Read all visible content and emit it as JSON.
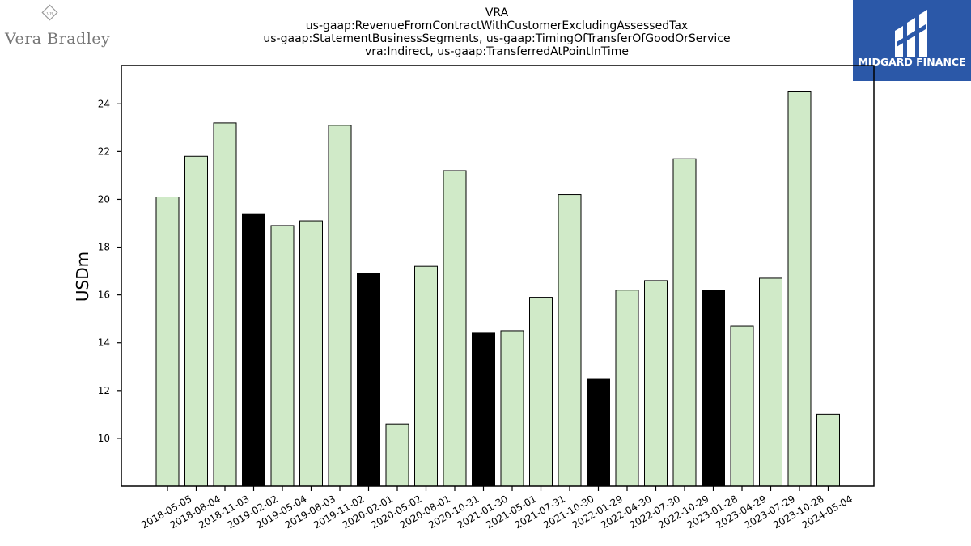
{
  "brand": {
    "left_logo_text": "Vera Bradley",
    "left_logo_monogram": "VB",
    "right_logo_text": "MIDGARD FINANCE",
    "right_logo_bg": "#2b58a8"
  },
  "chart_data": {
    "type": "bar",
    "title": [
      "VRA",
      "us-gaap:RevenueFromContractWithCustomerExcludingAssessedTax",
      "us-gaap:StatementBusinessSegments, us-gaap:TimingOfTransferOfGoodOrService",
      "vra:Indirect, us-gaap:TransferredAtPointInTime"
    ],
    "xlabel": "",
    "ylabel": "USDm",
    "ylim": [
      8.0,
      25.6
    ],
    "yticks": [
      10,
      12,
      14,
      16,
      18,
      20,
      22,
      24
    ],
    "grid": false,
    "colors": {
      "normal": "#d0eac8",
      "highlight": "#000000",
      "edge": "#000000"
    },
    "categories": [
      "2018-05-05",
      "2018-08-04",
      "2018-11-03",
      "2019-02-02",
      "2019-05-04",
      "2019-08-03",
      "2019-11-02",
      "2020-02-01",
      "2020-05-02",
      "2020-08-01",
      "2020-10-31",
      "2021-01-30",
      "2021-05-01",
      "2021-07-31",
      "2021-10-30",
      "2022-01-29",
      "2022-04-30",
      "2022-07-30",
      "2022-10-29",
      "2023-01-28",
      "2023-04-29",
      "2023-07-29",
      "2023-10-28",
      "2024-05-04"
    ],
    "values": [
      20.1,
      21.8,
      23.2,
      19.4,
      18.9,
      19.1,
      23.1,
      16.9,
      10.6,
      17.2,
      21.2,
      14.4,
      14.5,
      15.9,
      20.2,
      12.5,
      16.2,
      16.6,
      21.7,
      16.2,
      14.7,
      16.7,
      24.5,
      11.0
    ],
    "highlight": [
      false,
      false,
      false,
      true,
      false,
      false,
      false,
      true,
      false,
      false,
      false,
      true,
      false,
      false,
      false,
      true,
      false,
      false,
      false,
      true,
      false,
      false,
      false,
      false
    ]
  }
}
